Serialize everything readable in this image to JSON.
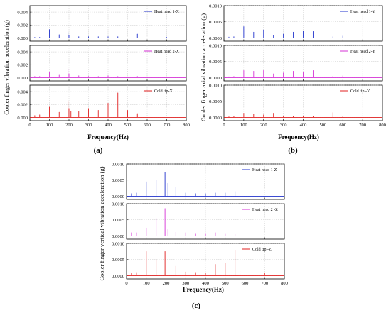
{
  "figure": {
    "panels": [
      {
        "caption": "(a)",
        "ylabel": "Cooler finger vibration acceleration (g)",
        "xlabel": "Frequency(Hz)",
        "xlim": [
          0,
          800
        ],
        "xticks": [
          "0",
          "100",
          "200",
          "300",
          "400",
          "500",
          "600",
          "700",
          "800"
        ]
      },
      {
        "caption": "(b)",
        "ylabel": "Cooler finger axial vibration acceleration (g)",
        "xlabel": "Frequency(Hz)",
        "xlim": [
          0,
          800
        ],
        "xticks": [
          "0",
          "100",
          "200",
          "300",
          "400",
          "500",
          "600",
          "700",
          "800"
        ]
      },
      {
        "caption": "(c)",
        "ylabel": "Cooler finger vertical vibration acceleration (g)",
        "xlabel": "Frequency(Hz)",
        "xlim": [
          0,
          800
        ],
        "xticks": [
          "0",
          "100",
          "200",
          "300",
          "400",
          "500",
          "600",
          "700",
          "800"
        ]
      }
    ]
  },
  "chart_data": [
    {
      "type": "line",
      "panel": "(a)",
      "legend": "Heat head 1-X",
      "color": "#2233cc",
      "ylim": [
        -0.0005,
        0.005
      ],
      "yticks": [
        "0.000",
        "0.002",
        "0.004"
      ],
      "x": [
        25,
        50,
        100,
        150,
        195,
        200,
        250,
        300,
        350,
        400,
        450,
        550,
        700
      ],
      "y": [
        0.0001,
        0.0001,
        0.0013,
        0.0005,
        0.0009,
        0.0004,
        0.0002,
        0.0002,
        0.0002,
        0.0002,
        0.0002,
        0.0006,
        0.0001
      ],
      "grid": true,
      "legend_position": "top-right"
    },
    {
      "type": "line",
      "panel": "(a)",
      "legend": "Heat head 2-X",
      "color": "#d633d6",
      "ylim": [
        -0.0005,
        0.005
      ],
      "yticks": [
        "0.000",
        "0.002",
        "0.004"
      ],
      "x": [
        25,
        50,
        100,
        150,
        195,
        200,
        250,
        300,
        350,
        400,
        450,
        550
      ],
      "y": [
        0.0002,
        0.0002,
        0.0009,
        0.0005,
        0.0014,
        0.0006,
        0.0003,
        0.0002,
        0.0002,
        0.0003,
        0.0002,
        0.0002
      ],
      "grid": true,
      "legend_position": "top-right"
    },
    {
      "type": "line",
      "panel": "(a)",
      "legend": "Cold tip-X",
      "color": "#e02020",
      "ylim": [
        -0.0005,
        0.005
      ],
      "yticks": [
        "0.000",
        "0.002",
        "0.004"
      ],
      "x": [
        25,
        50,
        100,
        150,
        195,
        200,
        210,
        250,
        300,
        350,
        400,
        450,
        500,
        550
      ],
      "y": [
        0.0003,
        0.0004,
        0.0016,
        0.0008,
        0.0025,
        0.0014,
        0.0009,
        0.0009,
        0.0014,
        0.0011,
        0.0022,
        0.0038,
        0.0011,
        0.0006
      ],
      "grid": true,
      "legend_position": "top-right"
    },
    {
      "type": "line",
      "panel": "(b)",
      "legend": "Heat head 1-Y",
      "color": "#2233cc",
      "ylim": [
        -0.0001,
        0.001
      ],
      "yticks": [
        "0.0000",
        "0.0005",
        "0.0010"
      ],
      "x": [
        25,
        50,
        100,
        150,
        200,
        250,
        300,
        350,
        400,
        450,
        550,
        600
      ],
      "y": [
        3e-05,
        4e-05,
        0.00035,
        0.00018,
        0.00025,
        8e-05,
        0.00012,
        0.00018,
        0.00022,
        0.0002,
        4e-05,
        6e-05
      ],
      "grid": true,
      "legend_position": "top-right"
    },
    {
      "type": "line",
      "panel": "(b)",
      "legend": "Heat head 2-Y",
      "color": "#d633d6",
      "ylim": [
        -0.0001,
        0.001
      ],
      "yticks": [
        "0.0000",
        "0.0005",
        "0.0010"
      ],
      "x": [
        25,
        50,
        100,
        150,
        200,
        250,
        300,
        350,
        400,
        450,
        550,
        600
      ],
      "y": [
        3e-05,
        4e-05,
        0.00022,
        0.0002,
        0.00022,
        0.00012,
        0.00015,
        0.0002,
        0.00018,
        0.00022,
        5e-05,
        6e-05
      ],
      "grid": true,
      "legend_position": "top-right"
    },
    {
      "type": "line",
      "panel": "(b)",
      "legend": "Cold tip -Y",
      "color": "#e02020",
      "ylim": [
        -0.0001,
        0.001
      ],
      "yticks": [
        "0.0000",
        "0.0005",
        "0.0010"
      ],
      "x": [
        25,
        50,
        100,
        150,
        200,
        250,
        300,
        350,
        400,
        450,
        550,
        600
      ],
      "y": [
        2e-05,
        3e-05,
        0.00013,
        0.0001,
        8e-05,
        0.00013,
        4e-05,
        4e-05,
        4e-05,
        4e-05,
        0.00015,
        4e-05
      ],
      "grid": true,
      "legend_position": "top-right"
    },
    {
      "type": "line",
      "panel": "(c)",
      "legend": "Heat head 1-Z",
      "color": "#2233cc",
      "ylim": [
        -0.0001,
        0.001
      ],
      "yticks": [
        "0.0000",
        "0.0005",
        "0.0010"
      ],
      "x": [
        25,
        50,
        100,
        150,
        195,
        210,
        250,
        300,
        350,
        400,
        450,
        500,
        550
      ],
      "y": [
        8e-05,
        0.0001,
        0.00045,
        0.0005,
        0.00075,
        0.0004,
        0.00028,
        0.0001,
        8e-05,
        8e-05,
        0.0001,
        0.0001,
        0.00015
      ],
      "grid": true,
      "legend_position": "top-right"
    },
    {
      "type": "line",
      "panel": "(c)",
      "legend": "Heat head 2 -Z",
      "color": "#d633d6",
      "ylim": [
        -0.0001,
        0.001
      ],
      "yticks": [
        "0.0000",
        "0.0005",
        "0.0010"
      ],
      "x": [
        25,
        50,
        100,
        150,
        195,
        210,
        250,
        300,
        350,
        400,
        450,
        500,
        550
      ],
      "y": [
        0.0001,
        0.0001,
        0.00025,
        0.00055,
        0.00085,
        0.0002,
        0.00012,
        0.0001,
        8e-05,
        8e-05,
        0.0001,
        8e-05,
        5e-05
      ],
      "grid": true,
      "legend_position": "top-right"
    },
    {
      "type": "line",
      "panel": "(c)",
      "legend": "Cold tip -Z",
      "color": "#e02020",
      "ylim": [
        -0.0001,
        0.001
      ],
      "yticks": [
        "0.0000",
        "0.0005",
        "0.0010"
      ],
      "x": [
        25,
        50,
        100,
        150,
        195,
        250,
        300,
        350,
        400,
        450,
        500,
        550,
        575,
        600,
        700
      ],
      "y": [
        8e-05,
        0.0001,
        0.00075,
        0.0005,
        0.00075,
        0.0003,
        0.00012,
        0.0001,
        8e-05,
        0.00035,
        0.0004,
        0.0008,
        0.00015,
        0.00012,
        8e-05
      ],
      "grid": true,
      "legend_position": "top-right"
    }
  ]
}
